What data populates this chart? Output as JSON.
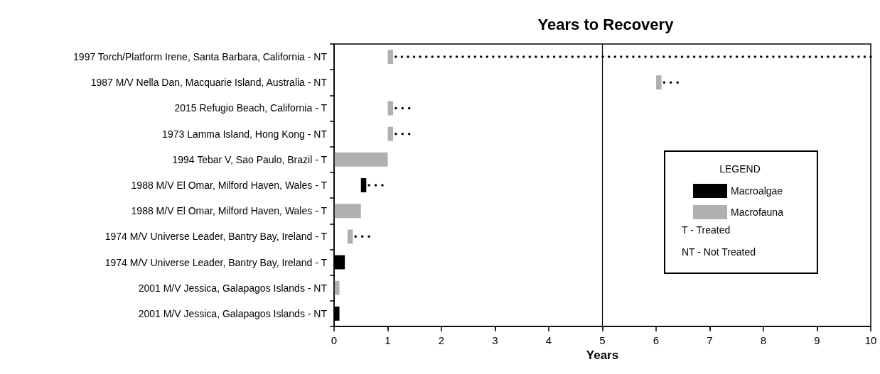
{
  "chart_data": {
    "type": "bar",
    "orientation": "horizontal",
    "title": "Years to Recovery",
    "xlabel": "Years",
    "legend_title": "LEGEND",
    "categories": [
      "1997 Torch/Platform Irene, Santa Barbara, California - NT",
      "1987 M/V Nella Dan, Macquarie Island, Australia - NT",
      "2015 Refugio Beach, California - T",
      "1973 Lamma Island, Hong Kong - NT",
      "1994 Tebar V, Sao Paulo, Brazil - T",
      "1988 M/V El Omar, Milford Haven, Wales - T",
      "1988 M/V El Omar, Milford Haven, Wales - T",
      "1974 M/V Universe Leader, Bantry Bay, Ireland - T",
      "1974 M/V Universe Leader, Bantry Bay, Ireland - T",
      "2001 M/V Jessica, Galapagos Islands - NT",
      "2001 M/V Jessica, Galapagos Islands - NT"
    ],
    "series": [
      {
        "name": "Macroalgae",
        "color": "#000000",
        "values": [
          null,
          null,
          null,
          null,
          null,
          0.1,
          null,
          null,
          0.2,
          null,
          0.1
        ],
        "base": [
          null,
          null,
          null,
          null,
          null,
          0.5,
          null,
          null,
          0,
          null,
          0
        ],
        "errors": [
          null,
          null,
          null,
          null,
          null,
          [
            0.65,
            0.9
          ],
          null,
          null,
          null,
          null,
          null
        ]
      },
      {
        "name": "Macrofauna",
        "color": "#b0b0b0",
        "values": [
          0.1,
          0.1,
          0.1,
          0.1,
          1,
          null,
          0.5,
          0.1,
          null,
          0.1,
          null
        ],
        "base": [
          1,
          6,
          1,
          1,
          0,
          null,
          0,
          0.25,
          null,
          0,
          null
        ],
        "errors": [
          [
            1.15,
            10
          ],
          [
            6.15,
            6.4
          ],
          [
            1.15,
            1.4
          ],
          [
            1.15,
            1.4
          ],
          null,
          null,
          null,
          [
            0.4,
            0.65
          ],
          null,
          null,
          null
        ]
      }
    ],
    "xlim": [
      0,
      10
    ],
    "xticks": [
      0,
      1,
      2,
      3,
      4,
      5,
      6,
      7,
      8,
      9,
      10
    ],
    "grid": false,
    "legend": "right",
    "ref_lines": [
      {
        "axis": "x",
        "value": 5,
        "color": "#000000",
        "line_style": "solid"
      }
    ],
    "annotations": [
      "T - Treated",
      "NT - Not Treated"
    ]
  }
}
